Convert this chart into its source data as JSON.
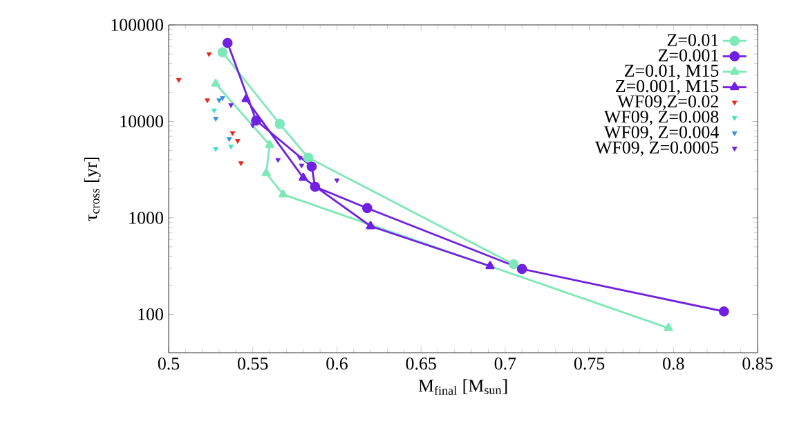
{
  "chart_data": {
    "type": "line",
    "xlabel": "M$_{final}$ [M$_{sun}$]",
    "ylabel": "τ$_{cross}$ [yr]",
    "xlim": [
      0.5,
      0.85
    ],
    "xticks": [
      0.5,
      0.55,
      0.6,
      0.65,
      0.7,
      0.75,
      0.8,
      0.85
    ],
    "ylim": [
      40,
      100000
    ],
    "yticks": [
      100,
      1000,
      10000,
      100000
    ],
    "log": "y",
    "legend": "top right",
    "grid": false,
    "series": [
      {
        "name": "Z=0.01",
        "marker": "circle",
        "color": "#7fe8b8",
        "x": [
          0.532,
          0.566,
          0.583,
          0.705
        ],
        "values": [
          52000,
          9400,
          4200,
          330
        ]
      },
      {
        "name": "Z=0.001",
        "marker": "circle",
        "color": "#7020e0",
        "x": [
          0.535,
          0.552,
          0.585,
          0.587,
          0.618,
          0.71,
          0.83
        ],
        "values": [
          65000,
          10200,
          3400,
          2100,
          1260,
          295,
          107
        ]
      },
      {
        "name": "Z=0.01, M15",
        "marker": "triangle",
        "color": "#7fe8b8",
        "x": [
          0.528,
          0.56,
          0.558,
          0.568,
          0.797
        ],
        "values": [
          24500,
          5700,
          2900,
          1750,
          72
        ]
      },
      {
        "name": "Z=0.001, M15",
        "marker": "triangle",
        "color": "#7020e0",
        "x": [
          0.546,
          0.58,
          0.62,
          0.691
        ],
        "values": [
          17000,
          2600,
          820,
          316
        ]
      },
      {
        "name": "WF09,Z=0.02",
        "type": "scatter",
        "marker": "triangle",
        "color": "#e8261a",
        "x": [
          0.506,
          0.524,
          0.523,
          0.538,
          0.541,
          0.543
        ],
        "values": [
          27000,
          50000,
          16600,
          7600,
          6300,
          3700
        ]
      },
      {
        "name": "WF09, Z=0.008",
        "type": "scatter",
        "marker": "triangle",
        "color": "#40e0c8",
        "x": [
          0.527,
          0.528,
          0.537
        ],
        "values": [
          13000,
          5200,
          5500
        ]
      },
      {
        "name": "WF09, Z=0.004",
        "type": "scatter",
        "marker": "triangle",
        "color": "#3a8ee0",
        "x": [
          0.528,
          0.53,
          0.532,
          0.536
        ],
        "values": [
          10700,
          16600,
          17500,
          6600
        ]
      },
      {
        "name": "WF09, Z=0.0005",
        "type": "scatter",
        "marker": "triangle",
        "color": "#7020e0",
        "x": [
          0.537,
          0.55,
          0.565,
          0.578,
          0.579,
          0.6
        ],
        "values": [
          14800,
          9100,
          4000,
          4200,
          3500,
          2450
        ]
      }
    ]
  }
}
